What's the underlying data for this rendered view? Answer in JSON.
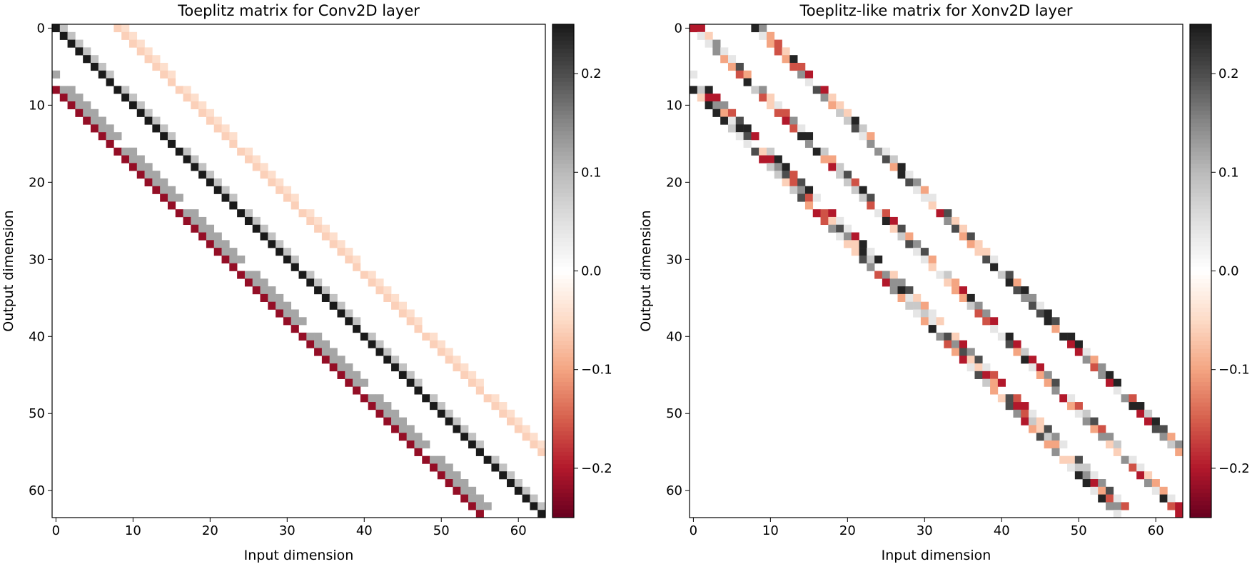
{
  "chart_data": [
    {
      "type": "heatmap",
      "title": "Toeplitz matrix for Conv2D layer",
      "xlabel": "Input dimension",
      "ylabel": "Output dimension",
      "size": 64,
      "xticks": [
        0,
        10,
        20,
        30,
        40,
        50,
        60
      ],
      "yticks": [
        0,
        10,
        20,
        30,
        40,
        50,
        60
      ],
      "colormap": "RdGy",
      "vmin": -0.25,
      "vmax": 0.25,
      "colorbar_ticks": [
        0.2,
        0.1,
        0.0,
        -0.1,
        -0.2
      ],
      "colorbar_tick_labels": [
        "0.2",
        "0.1",
        "0.0",
        "−0.1",
        "−0.2"
      ],
      "bands": [
        {
          "row_offset": 0,
          "values": [
            0.25,
            0.09
          ]
        },
        {
          "row_offset": -8,
          "values": [
            -0.22,
            0.12,
            0.12
          ]
        },
        {
          "row_offset": 8,
          "values": [
            -0.06,
            -0.045
          ]
        }
      ]
    },
    {
      "type": "heatmap",
      "title": "Toeplitz-like matrix for Xonv2D layer",
      "xlabel": "Input dimension",
      "ylabel": "Output dimension",
      "size": 64,
      "xticks": [
        0,
        10,
        20,
        30,
        40,
        50,
        60
      ],
      "yticks": [
        0,
        10,
        20,
        30,
        40,
        50,
        60
      ],
      "colormap": "RdGy",
      "vmin": -0.25,
      "vmax": 0.25,
      "colorbar_ticks": [
        0.2,
        0.1,
        0.0,
        -0.1,
        -0.2
      ],
      "colorbar_tick_labels": [
        "0.2",
        "0.1",
        "0.0",
        "−0.1",
        "−0.2"
      ],
      "bands": [
        {
          "row_offset": 0,
          "values": [
            -0.12,
            0.06
          ]
        },
        {
          "row_offset": -8,
          "values": [
            -0.18,
            0.17,
            -0.06
          ]
        },
        {
          "row_offset": 8,
          "values": [
            0.14,
            -0.1
          ]
        }
      ],
      "noise_seed": 7
    }
  ]
}
